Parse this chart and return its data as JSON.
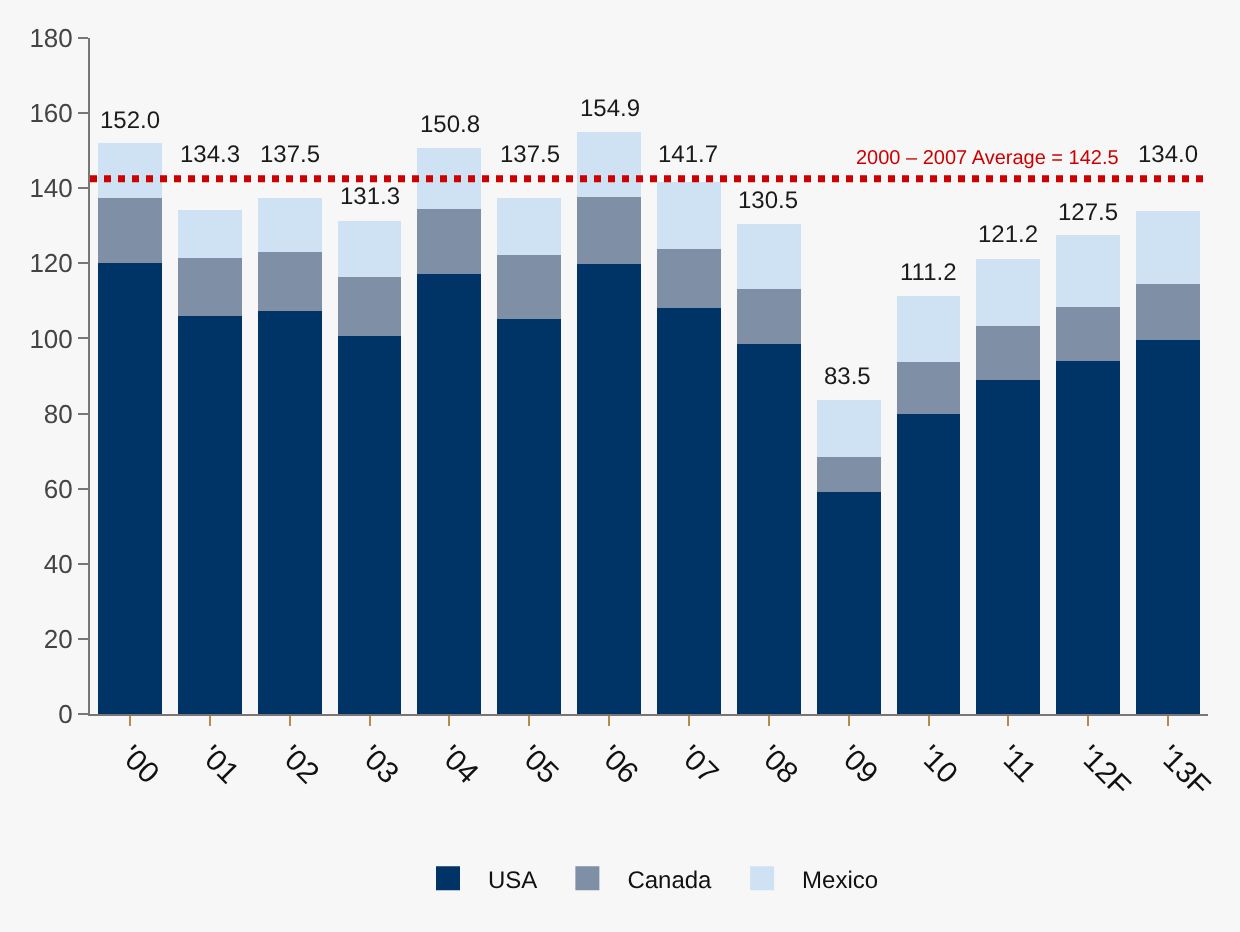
{
  "chart_data": {
    "type": "bar",
    "stacked": true,
    "categories": [
      "'00",
      "'01",
      "'02",
      "'03",
      "'04",
      "'05",
      "'06",
      "'07",
      "'08",
      "'09",
      "'10",
      "'11",
      "'12F",
      "'13F"
    ],
    "series": [
      {
        "name": "USA",
        "color": "#003366",
        "values": [
          120.0,
          106.0,
          107.3,
          100.7,
          117.2,
          105.2,
          119.7,
          108.2,
          98.6,
          59.0,
          79.8,
          89.0,
          94.0,
          99.6
        ]
      },
      {
        "name": "Canada",
        "color": "#7f8fa6",
        "values": [
          17.5,
          15.4,
          15.7,
          15.7,
          17.4,
          17.0,
          17.9,
          15.5,
          14.5,
          9.5,
          13.9,
          14.3,
          14.5,
          14.9
        ]
      },
      {
        "name": "Mexico",
        "color": "#cfe2f3",
        "values": [
          14.5,
          12.9,
          14.5,
          14.9,
          16.2,
          15.3,
          17.3,
          18.0,
          17.4,
          15.0,
          17.5,
          17.9,
          19.0,
          19.5
        ]
      }
    ],
    "totals": [
      "152.0",
      "134.3",
      "137.5",
      "131.3",
      "150.8",
      "137.5",
      "154.9",
      "141.7",
      "130.5",
      "83.5",
      "111.2",
      "121.2",
      "127.5",
      "134.0"
    ],
    "ref_lines": [
      {
        "axis": "y",
        "value": 142.5,
        "label": "2000 – 2007 Average = 142.5",
        "color": "#cc0000",
        "line_style": "dotted"
      }
    ],
    "ylim": [
      0,
      180
    ],
    "yticks": [
      0,
      20,
      40,
      60,
      80,
      100,
      120,
      140,
      160,
      180
    ],
    "grid": false,
    "legend": "bottom"
  }
}
